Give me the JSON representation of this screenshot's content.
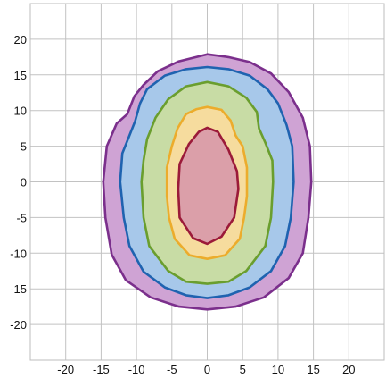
{
  "chart_data": {
    "type": "area",
    "title": "",
    "xlabel": "",
    "ylabel": "",
    "xlim": [
      -25,
      25
    ],
    "ylim": [
      -25,
      25
    ],
    "xticks": [
      -20,
      -15,
      -10,
      -5,
      0,
      5,
      10,
      15,
      20
    ],
    "yticks": [
      20,
      15,
      10,
      5,
      0,
      -5,
      -10,
      -15,
      -20
    ],
    "grid": true,
    "series": [
      {
        "fill": "#cfa3d4",
        "stroke": "#7b2f8c",
        "points": [
          [
            0,
            17.9
          ],
          [
            3,
            17.5
          ],
          [
            6,
            16.8
          ],
          [
            9,
            15.2
          ],
          [
            11.5,
            12.6
          ],
          [
            13.5,
            9
          ],
          [
            14.5,
            5
          ],
          [
            14.7,
            0
          ],
          [
            14.3,
            -5
          ],
          [
            13.5,
            -10
          ],
          [
            11.5,
            -13.5
          ],
          [
            8,
            -16.2
          ],
          [
            4,
            -17.5
          ],
          [
            0,
            -17.9
          ],
          [
            -4,
            -17.5
          ],
          [
            -8,
            -16.2
          ],
          [
            -11.5,
            -13.8
          ],
          [
            -13.5,
            -10.2
          ],
          [
            -14.4,
            -5
          ],
          [
            -14.7,
            0
          ],
          [
            -14.2,
            5
          ],
          [
            -12.8,
            8.2
          ],
          [
            -11.3,
            9.5
          ],
          [
            -10.3,
            12
          ],
          [
            -9,
            13.6
          ],
          [
            -7,
            15.5
          ],
          [
            -4,
            16.9
          ],
          [
            0,
            17.9
          ]
        ]
      },
      {
        "fill": "#a7c8ea",
        "stroke": "#1f63b0",
        "points": [
          [
            0,
            16.1
          ],
          [
            3,
            15.8
          ],
          [
            6,
            14.9
          ],
          [
            8.5,
            13
          ],
          [
            10,
            11
          ],
          [
            11.2,
            8
          ],
          [
            12,
            5
          ],
          [
            12.2,
            0
          ],
          [
            11.8,
            -5
          ],
          [
            11,
            -9
          ],
          [
            9,
            -12.5
          ],
          [
            6,
            -14.8
          ],
          [
            3,
            -15.9
          ],
          [
            0,
            -16.3
          ],
          [
            -3,
            -15.9
          ],
          [
            -6,
            -14.8
          ],
          [
            -9,
            -12.6
          ],
          [
            -11,
            -9
          ],
          [
            -11.8,
            -5
          ],
          [
            -12.3,
            0
          ],
          [
            -12,
            4
          ],
          [
            -11,
            6.5
          ],
          [
            -10.2,
            8.5
          ],
          [
            -9.5,
            11
          ],
          [
            -8.5,
            13
          ],
          [
            -6,
            14.9
          ],
          [
            -3,
            15.8
          ],
          [
            0,
            16.1
          ]
        ]
      },
      {
        "fill": "#c8dca5",
        "stroke": "#6a9e2e",
        "points": [
          [
            0,
            14
          ],
          [
            3,
            13.4
          ],
          [
            5.5,
            11.8
          ],
          [
            7,
            9.8
          ],
          [
            7.3,
            7.5
          ],
          [
            8.2,
            5.5
          ],
          [
            9.2,
            3
          ],
          [
            9.3,
            0
          ],
          [
            9,
            -5
          ],
          [
            8.2,
            -9
          ],
          [
            5.5,
            -12.5
          ],
          [
            3,
            -14
          ],
          [
            0,
            -14.3
          ],
          [
            -3,
            -14
          ],
          [
            -5.5,
            -12.5
          ],
          [
            -8.2,
            -9
          ],
          [
            -9,
            -5
          ],
          [
            -9.3,
            0
          ],
          [
            -9,
            3
          ],
          [
            -8.5,
            6
          ],
          [
            -7.3,
            9
          ],
          [
            -5.5,
            11.6
          ],
          [
            -3,
            13.4
          ],
          [
            0,
            14
          ]
        ]
      },
      {
        "fill": "#f6dc9e",
        "stroke": "#ecac2c",
        "points": [
          [
            0,
            10.5
          ],
          [
            2,
            10.1
          ],
          [
            3.3,
            8.6
          ],
          [
            4,
            6.5
          ],
          [
            5,
            5
          ],
          [
            5.6,
            2
          ],
          [
            5.6,
            -2
          ],
          [
            5.2,
            -5
          ],
          [
            4.6,
            -8
          ],
          [
            2.5,
            -10.3
          ],
          [
            0,
            -10.8
          ],
          [
            -2.5,
            -10.3
          ],
          [
            -4.6,
            -8
          ],
          [
            -5.4,
            -5
          ],
          [
            -5.7,
            -2
          ],
          [
            -5.7,
            2
          ],
          [
            -5,
            5
          ],
          [
            -4.2,
            7.5
          ],
          [
            -3,
            9.5
          ],
          [
            -1.5,
            10.2
          ],
          [
            0,
            10.5
          ]
        ]
      },
      {
        "fill": "#db9fa9",
        "stroke": "#9b1a39",
        "points": [
          [
            0,
            7.6
          ],
          [
            1.5,
            7
          ],
          [
            3,
            4.5
          ],
          [
            4.2,
            1.5
          ],
          [
            4.4,
            -1
          ],
          [
            3.8,
            -5
          ],
          [
            2,
            -7.7
          ],
          [
            0,
            -8.7
          ],
          [
            -2,
            -7.9
          ],
          [
            -3.9,
            -5
          ],
          [
            -4.1,
            -1
          ],
          [
            -3.9,
            2.5
          ],
          [
            -2.6,
            5.3
          ],
          [
            -1.2,
            7
          ],
          [
            0,
            7.6
          ]
        ]
      }
    ]
  }
}
